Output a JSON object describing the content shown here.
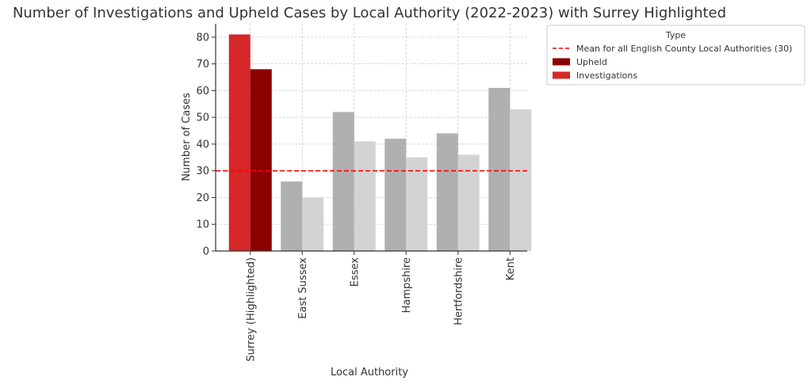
{
  "chart_data": {
    "type": "bar",
    "title": "Number of Investigations and Upheld Cases by Local Authority (2022-2023) with Surrey Highlighted",
    "xlabel": "Local Authority",
    "ylabel": "Number of Cases",
    "categories": [
      "Surrey (Highlighted)",
      "East Sussex",
      "Essex",
      "Hampshire",
      "Hertfordshire",
      "Kent"
    ],
    "series": [
      {
        "name": "Investigations",
        "values": [
          81,
          26,
          52,
          42,
          44,
          61
        ]
      },
      {
        "name": "Upheld",
        "values": [
          68,
          20,
          41,
          35,
          36,
          53
        ]
      }
    ],
    "highlight_category": "Surrey (Highlighted)",
    "colors": {
      "investigations_highlight": "#d62728",
      "upheld_highlight": "#8b0000",
      "investigations_other": "#b0b0b0",
      "upheld_other": "#d3d3d3",
      "mean_line": "#ff0000",
      "grid": "#cccccc",
      "axis": "#333333",
      "text": "#333333"
    },
    "reference_line": {
      "label": "Mean for all English County Local Authorities (30)",
      "value": 30
    },
    "ylim": [
      0,
      85
    ],
    "yticks": [
      0,
      10,
      20,
      30,
      40,
      50,
      60,
      70,
      80
    ],
    "grid": true,
    "legend": {
      "title": "Type",
      "placement": "outside-top-right",
      "entries": [
        {
          "label": "Mean for all English County Local Authorities (30)",
          "kind": "dashed-line",
          "color": "#ff0000"
        },
        {
          "label": "Upheld",
          "kind": "patch",
          "color": "#8b0000"
        },
        {
          "label": "Investigations",
          "kind": "patch",
          "color": "#d62728"
        }
      ]
    }
  }
}
